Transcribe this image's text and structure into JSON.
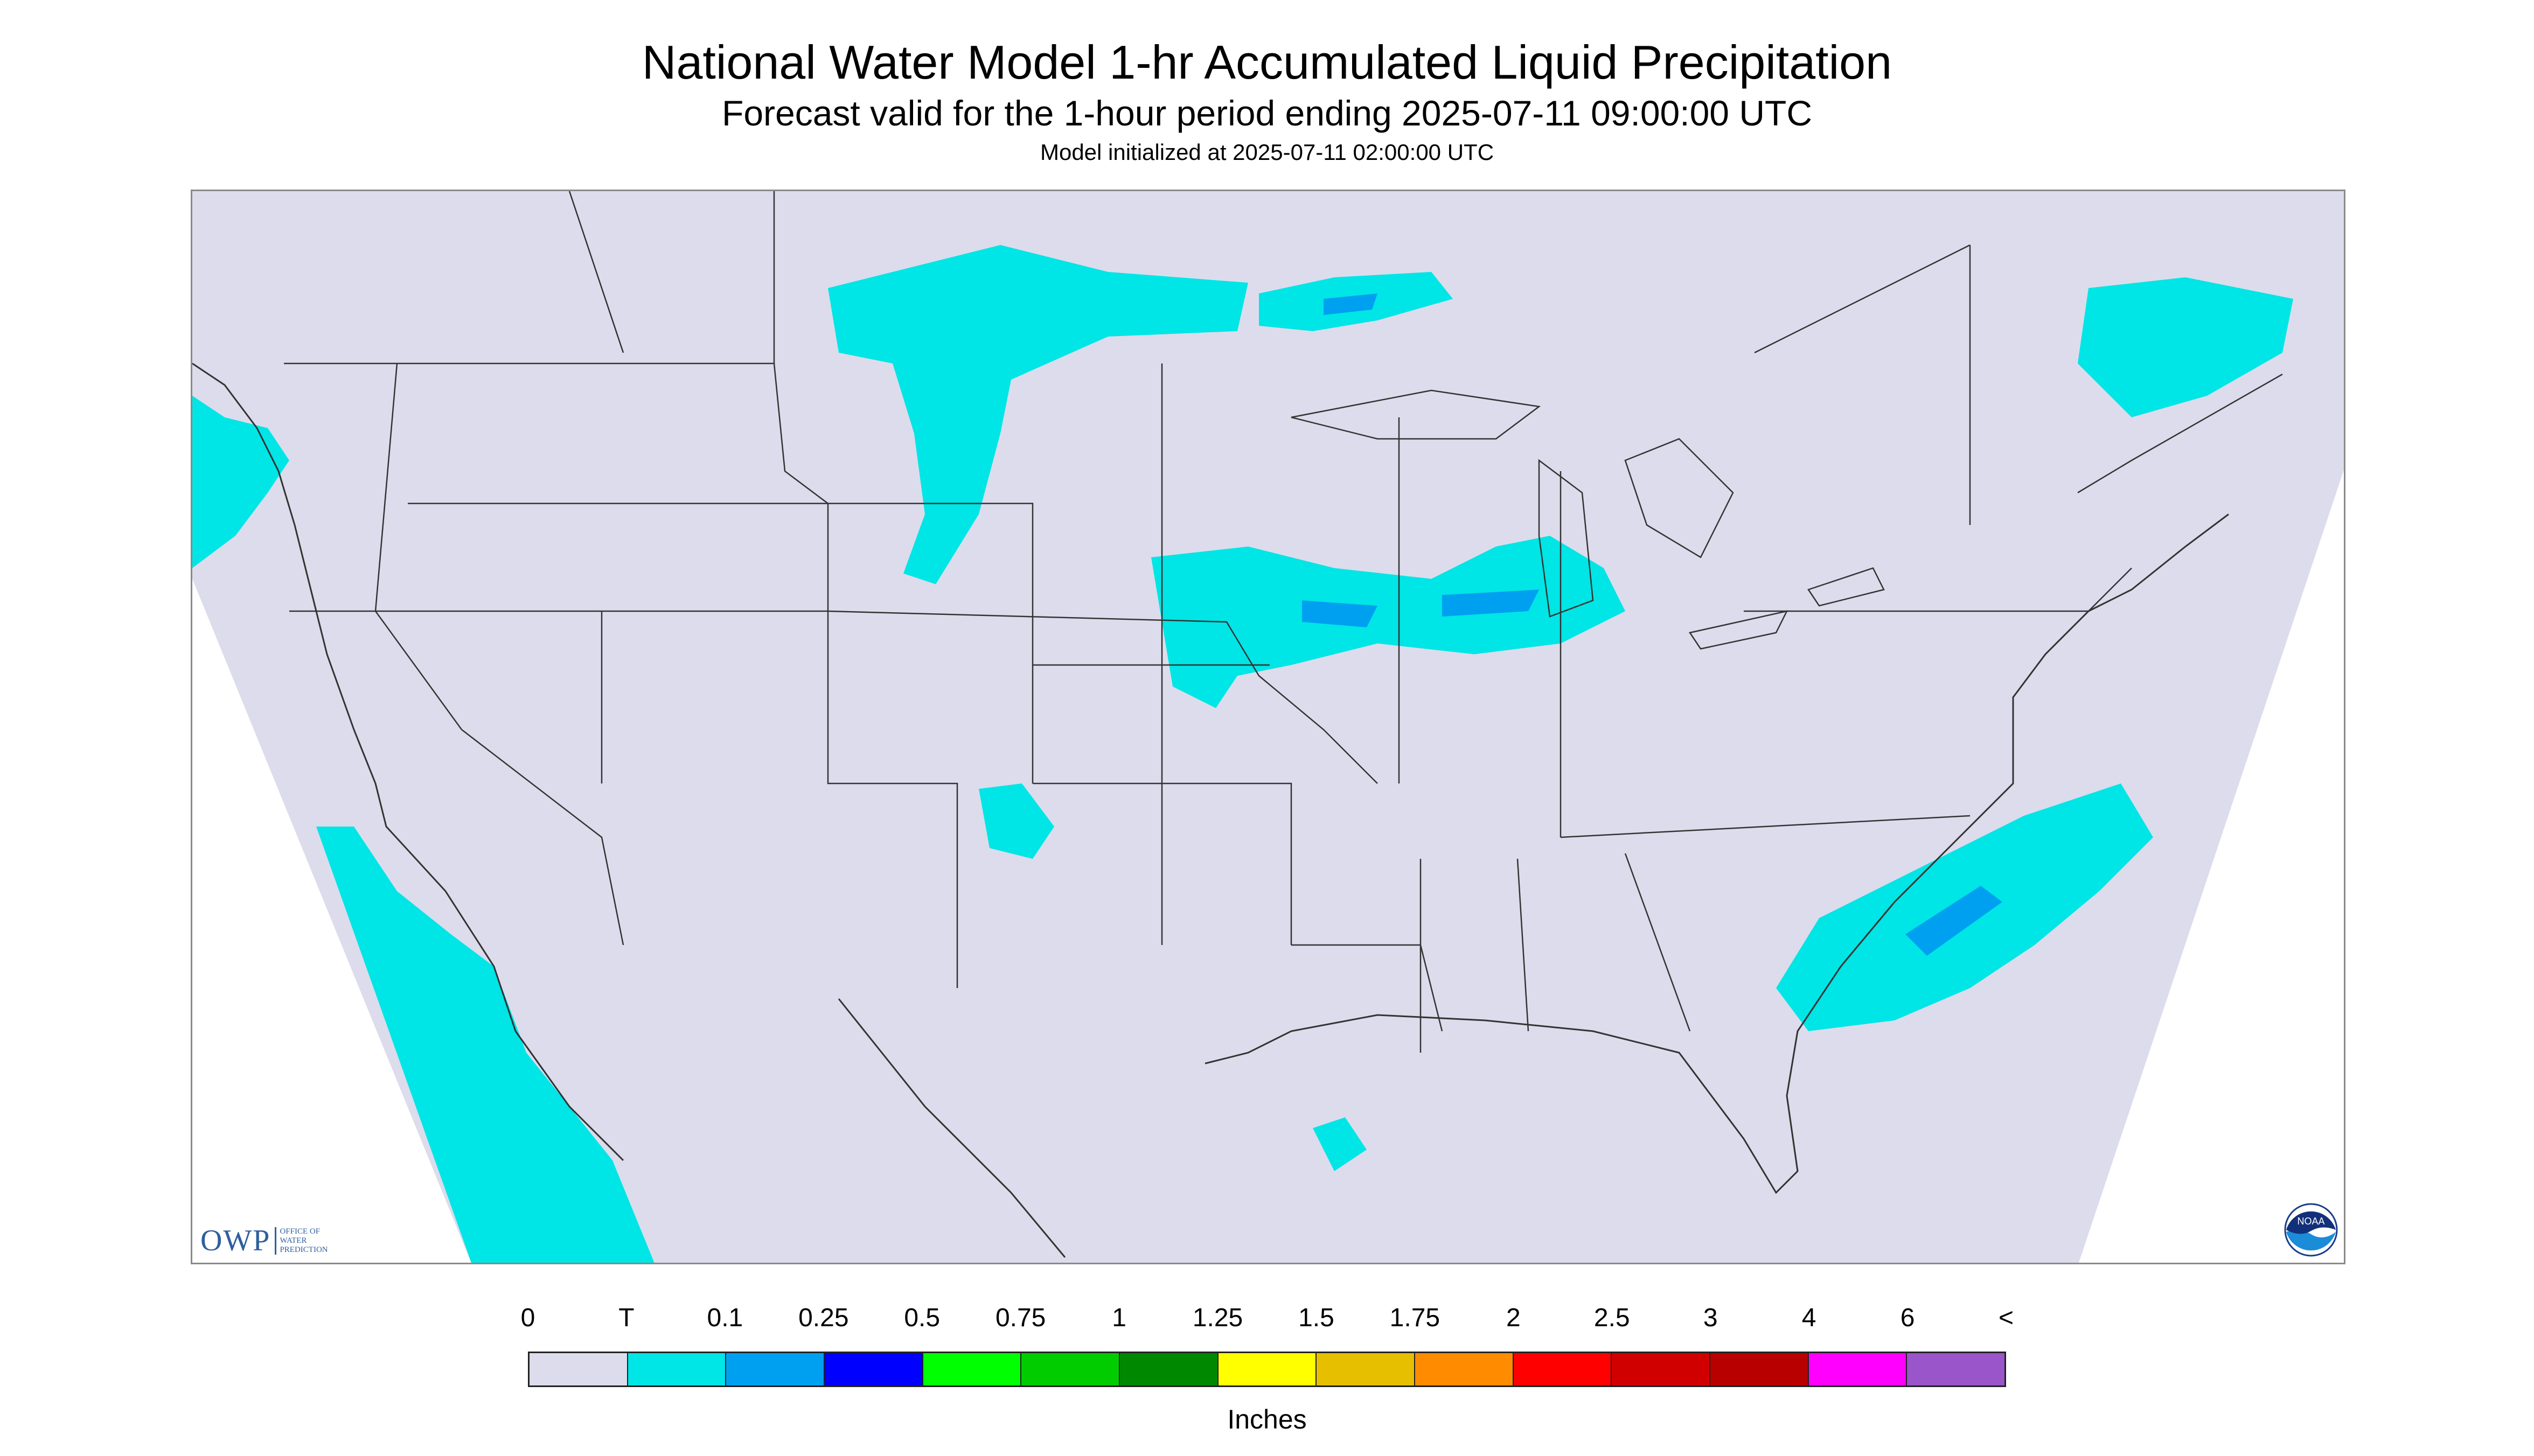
{
  "title": "National Water Model 1-hr Accumulated Liquid Precipitation",
  "subtitle": "Forecast valid for the 1-hour period ending 2025-07-11 09:00:00 UTC",
  "init_text": "Model initialized at 2025-07-11 02:00:00 UTC",
  "map": {
    "background_color": "#dcdcec",
    "outside_color": "#ffffff",
    "boundary_color": "#333333",
    "region": "Continental United States",
    "icon": "us-states-map"
  },
  "logos": {
    "owp": {
      "main": "OWP",
      "lines": [
        "OFFICE OF",
        "WATER",
        "PREDICTION"
      ]
    },
    "noaa": {
      "text": "NOAA"
    }
  },
  "legend": {
    "labels": [
      "0",
      "T",
      "0.1",
      "0.25",
      "0.5",
      "0.75",
      "1",
      "1.25",
      "1.5",
      "1.75",
      "2",
      "2.5",
      "3",
      "4",
      "6",
      "<"
    ],
    "colors": [
      "#dcdcec",
      "#00e5e5",
      "#00a0f0",
      "#0000ff",
      "#00ff00",
      "#00cc00",
      "#008800",
      "#ffff00",
      "#e6c000",
      "#ff8c00",
      "#ff0000",
      "#d00000",
      "#b80000",
      "#ff00ff",
      "#9955c9"
    ],
    "units": "Inches"
  }
}
